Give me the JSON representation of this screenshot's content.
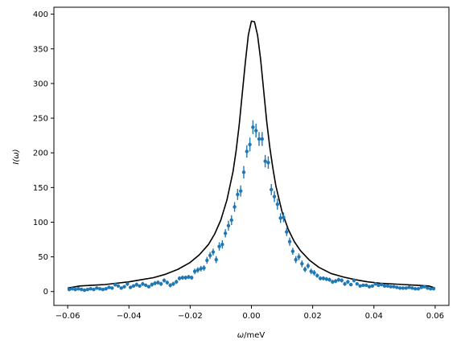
{
  "chart_data": {
    "type": "scatter",
    "title": "",
    "xlabel": "ω/meV",
    "ylabel": "I(ω)",
    "xlim": [
      -0.0645,
      0.0645
    ],
    "ylim": [
      -20,
      410
    ],
    "x_ticks": [
      -0.06,
      -0.04,
      -0.02,
      0.0,
      0.02,
      0.04,
      0.06
    ],
    "x_tick_labels": [
      "−0.06",
      "−0.04",
      "−0.02",
      "0.00",
      "0.02",
      "0.04",
      "0.06"
    ],
    "y_ticks": [
      0,
      50,
      100,
      150,
      200,
      250,
      300,
      350,
      400
    ],
    "y_tick_labels": [
      "0",
      "50",
      "100",
      "150",
      "200",
      "250",
      "300",
      "350",
      "400"
    ],
    "grid": false,
    "series": [
      {
        "kind": "line",
        "color": "#000000",
        "x": [
          -0.06,
          -0.056,
          -0.052,
          -0.048,
          -0.044,
          -0.04,
          -0.036,
          -0.032,
          -0.028,
          -0.024,
          -0.02,
          -0.017,
          -0.014,
          -0.012,
          -0.01,
          -0.008,
          -0.006,
          -0.005,
          -0.004,
          -0.003,
          -0.002,
          -0.001,
          0.0,
          0.001,
          0.002,
          0.003,
          0.004,
          0.005,
          0.006,
          0.007,
          0.008,
          0.01,
          0.012,
          0.014,
          0.016,
          0.019,
          0.022,
          0.026,
          0.03,
          0.034,
          0.038,
          0.042,
          0.046,
          0.05,
          0.054,
          0.058,
          0.06
        ],
        "y": [
          5,
          8,
          9,
          10,
          12,
          14,
          17,
          20,
          25,
          32,
          42,
          53,
          68,
          83,
          103,
          132,
          173,
          203,
          240,
          285,
          330,
          370,
          390,
          389,
          370,
          335,
          290,
          245,
          208,
          178,
          152,
          115,
          90,
          72,
          59,
          45,
          35,
          26,
          21,
          17,
          14,
          12,
          11,
          10,
          9,
          8,
          5
        ]
      },
      {
        "kind": "errorbar",
        "color": "#1f77b4",
        "x": [
          -0.0595,
          -0.0585,
          -0.0575,
          -0.0565,
          -0.0555,
          -0.0545,
          -0.0535,
          -0.0525,
          -0.0515,
          -0.0505,
          -0.0495,
          -0.0485,
          -0.0475,
          -0.0465,
          -0.0455,
          -0.0445,
          -0.0435,
          -0.0425,
          -0.0415,
          -0.0405,
          -0.0395,
          -0.0385,
          -0.0375,
          -0.0365,
          -0.0355,
          -0.0345,
          -0.0335,
          -0.0325,
          -0.0315,
          -0.0305,
          -0.0295,
          -0.0285,
          -0.0275,
          -0.0265,
          -0.0255,
          -0.0245,
          -0.0235,
          -0.0225,
          -0.0215,
          -0.0205,
          -0.0195,
          -0.0185,
          -0.0175,
          -0.0165,
          -0.0155,
          -0.0145,
          -0.0135,
          -0.0125,
          -0.0115,
          -0.0105,
          -0.0095,
          -0.0085,
          -0.0075,
          -0.0065,
          -0.0055,
          -0.0045,
          -0.0035,
          -0.0025,
          -0.0015,
          -0.0005,
          0.0005,
          0.0015,
          0.0025,
          0.0035,
          0.0045,
          0.0055,
          0.0065,
          0.0075,
          0.0085,
          0.0095,
          0.0105,
          0.0115,
          0.0125,
          0.0135,
          0.0145,
          0.0155,
          0.0165,
          0.0175,
          0.0185,
          0.0195,
          0.0205,
          0.0215,
          0.0225,
          0.0235,
          0.0245,
          0.0255,
          0.0265,
          0.0275,
          0.0285,
          0.0295,
          0.0305,
          0.0315,
          0.0325,
          0.0335,
          0.0345,
          0.0355,
          0.0365,
          0.0375,
          0.0385,
          0.0395,
          0.0405,
          0.0415,
          0.0425,
          0.0435,
          0.0445,
          0.0455,
          0.0465,
          0.0475,
          0.0485,
          0.0495,
          0.0505,
          0.0515,
          0.0525,
          0.0535,
          0.0545,
          0.0555,
          0.0565,
          0.0575,
          0.0585,
          0.0595
        ],
        "y": [
          3,
          4,
          3,
          4,
          3,
          2,
          3,
          4,
          3,
          5,
          4,
          3,
          4,
          6,
          5,
          10,
          8,
          5,
          7,
          11,
          6,
          8,
          10,
          8,
          11,
          9,
          7,
          10,
          12,
          13,
          11,
          16,
          13,
          9,
          11,
          14,
          19,
          20,
          20,
          21,
          20,
          29,
          31,
          33,
          34,
          45,
          52,
          57,
          46,
          65,
          68,
          84,
          95,
          103,
          122,
          140,
          145,
          172,
          202,
          212,
          237,
          232,
          220,
          220,
          188,
          186,
          147,
          137,
          126,
          106,
          107,
          86,
          72,
          58,
          46,
          50,
          40,
          32,
          37,
          29,
          27,
          23,
          19,
          19,
          18,
          17,
          14,
          15,
          17,
          16,
          11,
          14,
          10,
          16,
          11,
          8,
          9,
          9,
          7,
          8,
          11,
          9,
          10,
          8,
          8,
          7,
          7,
          6,
          5,
          5,
          5,
          6,
          5,
          4,
          4,
          6,
          7,
          5,
          4,
          4
        ],
        "yerr": [
          2,
          2,
          2,
          2,
          2,
          2,
          2,
          2,
          2,
          2,
          2,
          2,
          2,
          2,
          2,
          3,
          2,
          2,
          2,
          3,
          2,
          2,
          3,
          2,
          3,
          2,
          2,
          3,
          3,
          3,
          3,
          3,
          3,
          3,
          3,
          3,
          3,
          3,
          3,
          3,
          3,
          4,
          4,
          4,
          4,
          5,
          5,
          5,
          5,
          6,
          6,
          6,
          7,
          7,
          7,
          8,
          8,
          9,
          9,
          10,
          10,
          10,
          10,
          10,
          9,
          9,
          8,
          8,
          8,
          7,
          7,
          6,
          6,
          5,
          5,
          5,
          5,
          4,
          4,
          4,
          4,
          3,
          3,
          3,
          3,
          3,
          3,
          3,
          3,
          3,
          3,
          3,
          2,
          3,
          2,
          2,
          2,
          2,
          2,
          2,
          2,
          2,
          2,
          2,
          2,
          2,
          2,
          2,
          2,
          2,
          2,
          2,
          2,
          2,
          2,
          2,
          2,
          2,
          2,
          2
        ]
      }
    ]
  }
}
